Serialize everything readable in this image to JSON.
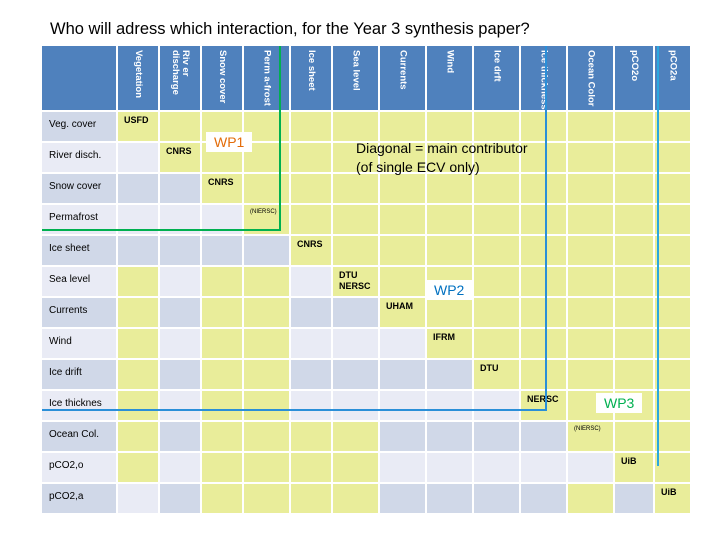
{
  "title": "Who will adress which interaction, for the Year 3 synthesis paper?",
  "columns": [
    "Vegetation",
    "Riv er discharge",
    "Snow cover",
    "Perm a-frost",
    "Ice sheet",
    "Sea level",
    "Currents",
    "Wind",
    "Ice drft",
    "Ice thickness",
    "Ocean Color",
    "pCO2o",
    "pCO2a"
  ],
  "rows": [
    {
      "label": "Veg. cover",
      "cells": [
        "USFD",
        "",
        "",
        "",
        "",
        "",
        "",
        "",
        "",
        "",
        "",
        "",
        ""
      ]
    },
    {
      "label": "River disch.",
      "cells": [
        "",
        "CNRS",
        "",
        "",
        "",
        "",
        "",
        "",
        "",
        "",
        "",
        "",
        ""
      ]
    },
    {
      "label": "Snow cover",
      "cells": [
        "",
        "",
        "CNRS",
        "",
        "",
        "",
        "",
        "",
        "",
        "",
        "",
        "",
        ""
      ]
    },
    {
      "label": "Permafrost",
      "cells": [
        "",
        "",
        "",
        "(NIERSC)",
        "",
        "",
        "",
        "",
        "",
        "",
        "",
        "",
        ""
      ]
    },
    {
      "label": "Ice sheet",
      "cells": [
        "",
        "",
        "",
        "",
        "CNRS",
        "",
        "",
        "",
        "",
        "",
        "",
        "",
        ""
      ]
    },
    {
      "label": "Sea level",
      "cells": [
        "",
        "",
        "",
        "",
        "",
        "DTU NERSC",
        "",
        "",
        "",
        "",
        "",
        "",
        ""
      ]
    },
    {
      "label": "Currents",
      "cells": [
        "",
        "",
        "",
        "",
        "",
        "",
        "UHAM",
        "",
        "",
        "",
        "",
        "",
        ""
      ]
    },
    {
      "label": "Wind",
      "cells": [
        "",
        "",
        "",
        "",
        "",
        "",
        "",
        "IFRM",
        "",
        "",
        "",
        "",
        ""
      ]
    },
    {
      "label": "Ice drift",
      "cells": [
        "",
        "",
        "",
        "",
        "",
        "",
        "",
        "",
        "DTU",
        "",
        "",
        "",
        ""
      ]
    },
    {
      "label": "Ice thicknes",
      "cells": [
        "",
        "",
        "",
        "",
        "",
        "",
        "",
        "",
        "",
        "NERSC",
        "",
        "",
        ""
      ]
    },
    {
      "label": "Ocean Col.",
      "cells": [
        "",
        "",
        "",
        "",
        "",
        "",
        "",
        "",
        "",
        "",
        "(NIERSC)",
        "",
        ""
      ]
    },
    {
      "label": "pCO2,o",
      "cells": [
        "",
        "",
        "",
        "",
        "",
        "",
        "",
        "",
        "",
        "",
        "",
        "UiB",
        ""
      ]
    },
    {
      "label": "pCO2,a",
      "cells": [
        "",
        "",
        "",
        "",
        "",
        "",
        "",
        "",
        "",
        "",
        "",
        "",
        "UiB"
      ]
    }
  ],
  "cell_colors": [
    "#e9ed9a",
    "#e9ed9a",
    "#e9ed9a",
    "#e9ed9a",
    "#e9ed9a",
    "#e9ed9a",
    "#e9ed9a",
    "#e9ed9a",
    "#e9ed9a",
    "#e9ed9a",
    "#e9ed9a",
    "#e9ed9a",
    "#e9ed9a",
    "#e9ebf5",
    "#e9ed9a",
    "#e9ed9a",
    "#e9ed9a",
    "#e9ed9a",
    "#e9ed9a",
    "#e9ed9a",
    "#e9ed9a",
    "#e9ed9a",
    "#e9ed9a",
    "#e9ed9a",
    "#e9ed9a",
    "#e9ed9a",
    "#d0d8e8",
    "#d0d8e8",
    "#e9ed9a",
    "#e9ed9a",
    "#e9ed9a",
    "#e9ed9a",
    "#e9ed9a",
    "#e9ed9a",
    "#e9ed9a",
    "#e9ed9a",
    "#e9ed9a",
    "#e9ed9a",
    "#e9ed9a",
    "#e9ebf5",
    "#e9ebf5",
    "#e9ebf5",
    "#e9ed9a",
    "#e9ed9a",
    "#e9ed9a",
    "#e9ed9a",
    "#e9ed9a",
    "#e9ed9a",
    "#e9ed9a",
    "#e9ed9a",
    "#e9ed9a",
    "#e9ed9a",
    "#d0d8e8",
    "#d0d8e8",
    "#d0d8e8",
    "#d0d8e8",
    "#e9ed9a",
    "#e9ed9a",
    "#e9ed9a",
    "#e9ed9a",
    "#e9ed9a",
    "#e9ed9a",
    "#e9ed9a",
    "#e9ed9a",
    "#e9ed9a",
    "#e9ed9a",
    "#e9ebf5",
    "#e9ed9a",
    "#e9ed9a",
    "#e9ebf5",
    "#e9ed9a",
    "#e9ed9a",
    "#e9ed9a",
    "#e9ed9a",
    "#e9ed9a",
    "#e9ed9a",
    "#e9ed9a",
    "#e9ed9a",
    "#e9ed9a",
    "#d0d8e8",
    "#e9ed9a",
    "#e9ed9a",
    "#d0d8e8",
    "#d0d8e8",
    "#e9ed9a",
    "#e9ed9a",
    "#e9ed9a",
    "#e9ed9a",
    "#e9ed9a",
    "#e9ed9a",
    "#e9ed9a",
    "#e9ed9a",
    "#e9ebf5",
    "#e9ed9a",
    "#e9ed9a",
    "#e9ebf5",
    "#e9ebf5",
    "#e9ebf5",
    "#e9ed9a",
    "#e9ed9a",
    "#e9ed9a",
    "#e9ed9a",
    "#e9ed9a",
    "#e9ed9a",
    "#e9ed9a",
    "#d0d8e8",
    "#e9ed9a",
    "#e9ed9a",
    "#d0d8e8",
    "#d0d8e8",
    "#d0d8e8",
    "#d0d8e8",
    "#e9ed9a",
    "#e9ed9a",
    "#e9ed9a",
    "#e9ed9a",
    "#e9ed9a",
    "#e9ed9a",
    "#e9ebf5",
    "#e9ed9a",
    "#e9ed9a",
    "#e9ebf5",
    "#e9ebf5",
    "#e9ebf5",
    "#e9ebf5",
    "#e9ebf5",
    "#e9ed9a",
    "#e9ed9a",
    "#e9ed9a",
    "#e9ed9a",
    "#e9ed9a",
    "#d0d8e8",
    "#e9ed9a",
    "#e9ed9a",
    "#e9ed9a",
    "#e9ed9a",
    "#d0d8e8",
    "#d0d8e8",
    "#d0d8e8",
    "#d0d8e8",
    "#e9ed9a",
    "#e9ed9a",
    "#e9ed9a",
    "#e9ed9a",
    "#e9ebf5",
    "#e9ed9a",
    "#e9ed9a",
    "#e9ed9a",
    "#e9ed9a",
    "#e9ebf5",
    "#e9ebf5",
    "#e9ebf5",
    "#e9ebf5",
    "#e9ebf5",
    "#e9ed9a",
    "#e9ed9a",
    "#e9ebf5",
    "#d0d8e8",
    "#e9ed9a",
    "#e9ed9a",
    "#e9ed9a",
    "#e9ed9a",
    "#d0d8e8",
    "#d0d8e8",
    "#d0d8e8",
    "#d0d8e8",
    "#e9ed9a",
    "#d0d8e8",
    "#e9ed9a"
  ],
  "rowhead_colors": [
    "#d0d8e8",
    "#e9ebf5"
  ],
  "header_color": "#4f81bd",
  "wp1": {
    "label": "WP1",
    "color": "#e36c09",
    "line_color": "#00b050"
  },
  "wp2": {
    "label": "WP2",
    "color": "#0070c0",
    "line_color": "#1f77d4"
  },
  "wp3": {
    "label": "WP3",
    "color": "#00b050",
    "line_color": "#2aa8e0"
  },
  "annotation": {
    "line1": "Diagonal = main contributor",
    "line2": "(of single ECV only)"
  }
}
